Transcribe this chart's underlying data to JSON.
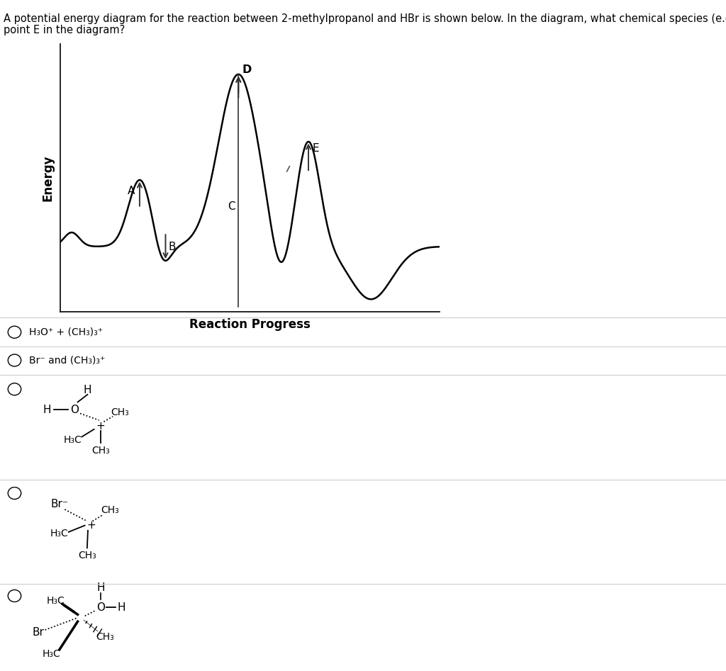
{
  "title_line1": "A potential energy diagram for the reaction between 2-methylpropanol and HBr is shown below. In the diagram, what chemical species (e.g. transition states) exist at",
  "title_line2": "point E in the diagram?",
  "xlabel": "Reaction Progress",
  "ylabel": "Energy",
  "bg_color": "#ffffff",
  "curve_color": "#000000",
  "opt1_text": "H₃O⁺ + (CH₃)₃⁺",
  "opt2_text": "Br⁻ and (CH₃)₃⁺"
}
